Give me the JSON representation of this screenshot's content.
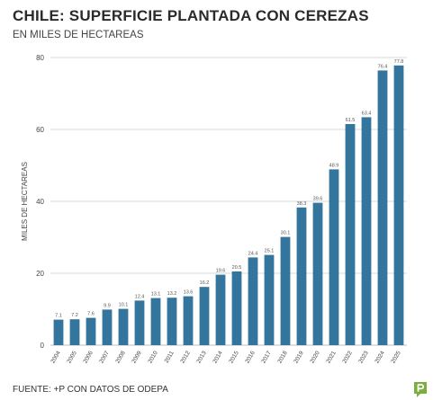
{
  "header": {
    "title": "CHILE: SUPERFICIE PLANTADA CON CEREZAS",
    "subtitle": "EN MILES DE HECTAREAS"
  },
  "footer": {
    "source": "FUENTE: +P CON DATOS DE ODEPA"
  },
  "colors": {
    "bar": "#33759c",
    "gridline": "#d9d9d9",
    "baseline": "#bdbdbd",
    "logo": "#7cae3f"
  },
  "logo": {
    "icon": "p-logo-icon"
  },
  "chart_data": {
    "type": "bar",
    "title": "CHILE: SUPERFICIE PLANTADA CON CEREZAS",
    "subtitle": "EN MILES DE HECTAREAS",
    "xlabel": "",
    "ylabel": "MILES DE HECTAREAS",
    "ylim": [
      0,
      80
    ],
    "yticks": [
      0,
      20,
      40,
      60,
      80
    ],
    "grid": true,
    "legend": "none",
    "categories": [
      "2004",
      "2005",
      "2006",
      "2007",
      "2008",
      "2009",
      "2010",
      "2011",
      "2012",
      "2013",
      "2014",
      "2015",
      "2016",
      "2017",
      "2018",
      "2019",
      "2020",
      "2021",
      "2022",
      "2023",
      "2024",
      "2025"
    ],
    "values": [
      7.1,
      7.2,
      7.6,
      9.9,
      10.1,
      12.4,
      13.1,
      13.2,
      13.6,
      16.2,
      19.6,
      20.5,
      24.4,
      25.1,
      30.1,
      38.3,
      39.6,
      48.9,
      61.5,
      63.4,
      76.4,
      77.8
    ],
    "labels": [
      "7.1",
      "7.2",
      "7.6",
      "9.9",
      "10.1",
      "12.4",
      "13.1",
      "13.2",
      "13.6",
      "16.2",
      "19.6",
      "20.5",
      "24.4",
      "25.1",
      "30.1",
      "38.3",
      "39.6",
      "48.9",
      "61.5",
      "63.4",
      "76.4",
      "77.8"
    ]
  }
}
